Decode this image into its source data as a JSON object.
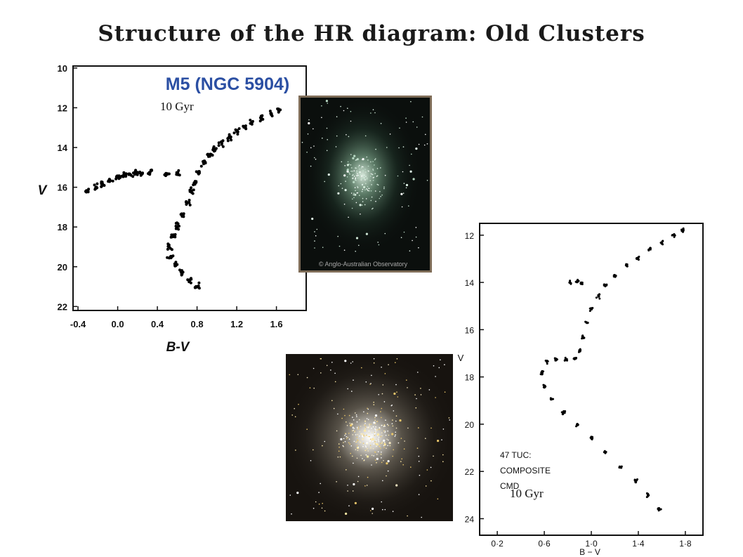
{
  "slide": {
    "title": "Structure of the HR diagram: Old Clusters"
  },
  "annotations": {
    "m5_age": "10 Gyr",
    "tuc_age": "10 Gyr"
  },
  "photo_m5": {
    "credit": "© Anglo-Australian Observatory"
  },
  "colors": {
    "m5_title": "#2b4fa3",
    "points": "#000000"
  },
  "chart_data": [
    {
      "type": "scatter",
      "title": "M5 (NGC 5904)",
      "xlabel": "B-V",
      "ylabel": "V",
      "xlim": [
        -0.45,
        1.9
      ],
      "ylim": [
        22.2,
        9.9
      ],
      "y_inverted": true,
      "x_ticks": [
        "-0.4",
        "0.0",
        "0.4",
        "0.8",
        "1.2",
        "1.6"
      ],
      "y_ticks": [
        "10",
        "12",
        "14",
        "16",
        "18",
        "20",
        "22"
      ],
      "series": [
        {
          "points": [
            [
              1.62,
              12.1
            ],
            [
              1.55,
              12.3
            ],
            [
              1.45,
              12.5
            ],
            [
              1.35,
              12.75
            ],
            [
              1.28,
              12.95
            ],
            [
              1.2,
              13.2
            ],
            [
              1.12,
              13.5
            ],
            [
              1.05,
              13.8
            ],
            [
              0.98,
              14.1
            ],
            [
              0.92,
              14.4
            ],
            [
              0.87,
              14.8
            ],
            [
              0.82,
              15.2
            ],
            [
              0.78,
              15.7
            ],
            [
              0.74,
              16.2
            ],
            [
              0.7,
              16.8
            ],
            [
              0.66,
              17.4
            ],
            [
              0.6,
              18.0
            ],
            [
              0.55,
              18.5
            ],
            [
              0.52,
              19.0
            ],
            [
              0.53,
              19.5
            ],
            [
              0.58,
              19.9
            ],
            [
              0.65,
              20.3
            ],
            [
              0.72,
              20.7
            ],
            [
              0.8,
              21.0
            ],
            [
              -0.3,
              16.2
            ],
            [
              -0.22,
              16.0
            ],
            [
              -0.15,
              15.85
            ],
            [
              -0.08,
              15.65
            ],
            [
              0.0,
              15.5
            ],
            [
              0.06,
              15.4
            ],
            [
              0.12,
              15.35
            ],
            [
              0.18,
              15.3
            ],
            [
              0.25,
              15.3
            ],
            [
              0.32,
              15.25
            ],
            [
              0.5,
              15.35
            ],
            [
              0.6,
              15.3
            ]
          ]
        }
      ]
    },
    {
      "type": "scatter",
      "title": "",
      "annotation": [
        "47 TUC:",
        "COMPOSITE",
        "CMD"
      ],
      "xlabel": "B − V",
      "ylabel": "V",
      "xlim": [
        0.05,
        1.95
      ],
      "ylim": [
        24.7,
        11.5
      ],
      "y_inverted": true,
      "x_ticks": [
        "0·2",
        "0·6",
        "1·0",
        "1·4",
        "1·8"
      ],
      "y_ticks": [
        "12",
        "14",
        "16",
        "18",
        "20",
        "22",
        "24"
      ],
      "series": [
        {
          "points": [
            [
              1.78,
              11.8
            ],
            [
              1.7,
              12.0
            ],
            [
              1.6,
              12.3
            ],
            [
              1.5,
              12.6
            ],
            [
              1.4,
              12.95
            ],
            [
              1.3,
              13.3
            ],
            [
              1.2,
              13.7
            ],
            [
              1.12,
              14.1
            ],
            [
              1.06,
              14.6
            ],
            [
              1.0,
              15.1
            ],
            [
              0.96,
              15.7
            ],
            [
              0.93,
              16.3
            ],
            [
              0.9,
              16.9
            ],
            [
              0.86,
              17.2
            ],
            [
              0.78,
              17.25
            ],
            [
              0.7,
              17.25
            ],
            [
              0.62,
              17.35
            ],
            [
              0.58,
              17.8
            ],
            [
              0.6,
              18.4
            ],
            [
              0.66,
              18.95
            ],
            [
              0.76,
              19.5
            ],
            [
              0.88,
              20.0
            ],
            [
              1.0,
              20.6
            ],
            [
              1.12,
              21.2
            ],
            [
              1.25,
              21.8
            ],
            [
              1.38,
              22.4
            ],
            [
              1.48,
              23.0
            ],
            [
              1.58,
              23.6
            ],
            [
              0.82,
              14.0
            ],
            [
              0.88,
              13.95
            ],
            [
              0.92,
              14.05
            ]
          ]
        }
      ]
    }
  ]
}
